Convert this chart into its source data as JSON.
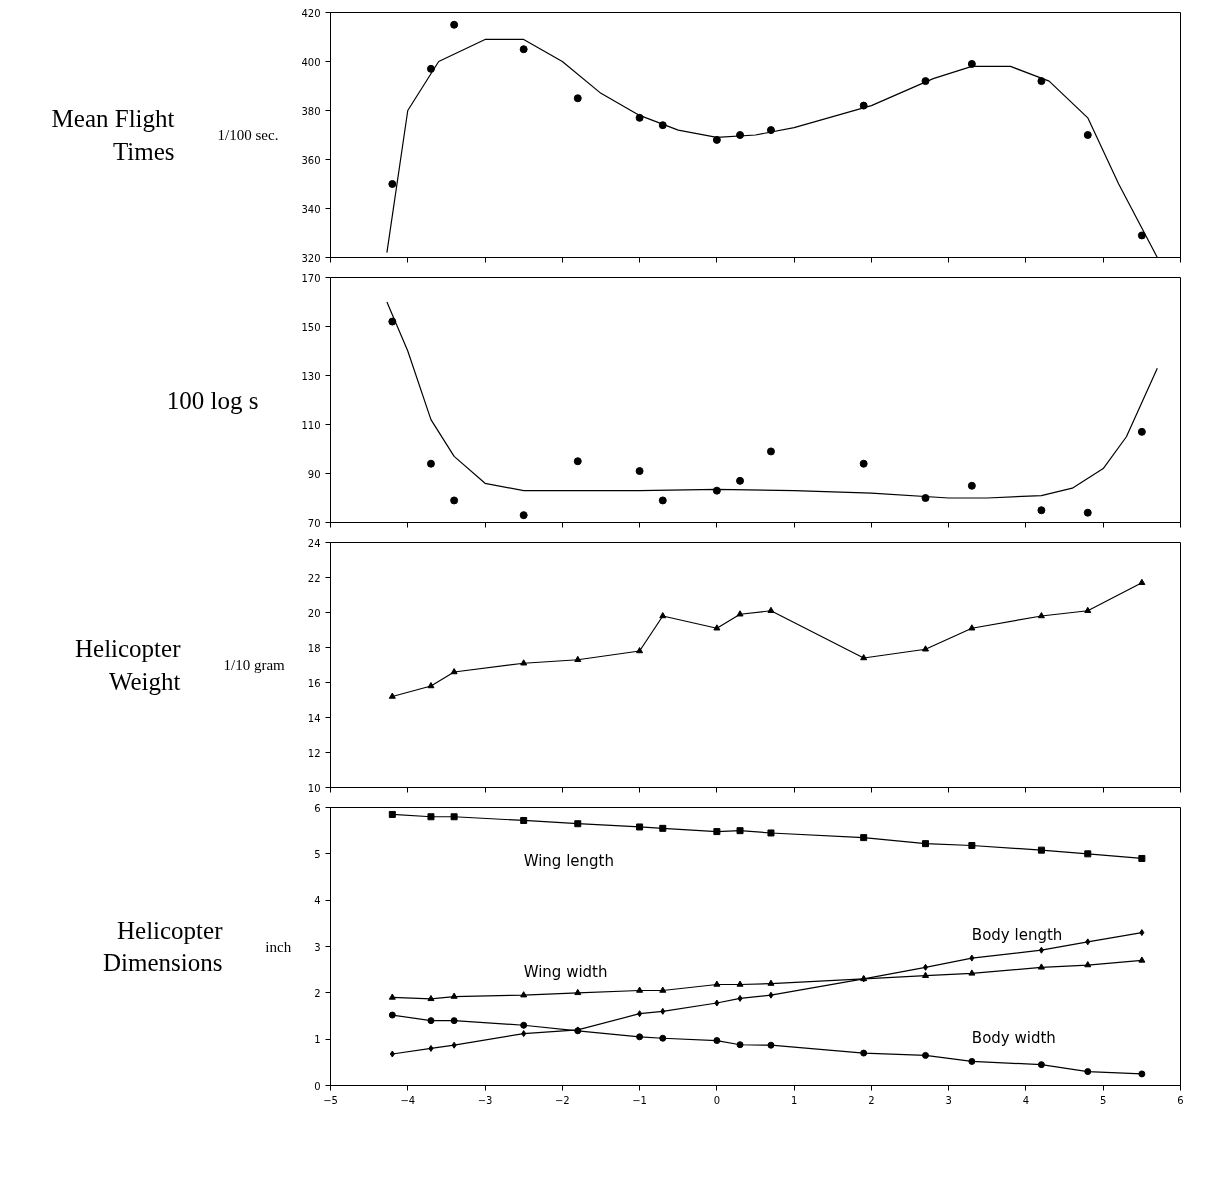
{
  "chart_data": [
    {
      "type": "scatter",
      "title": "Mean Flight Times",
      "ylabel": "1/100 sec.",
      "xlim": [
        -5,
        6
      ],
      "ylim": [
        320,
        420
      ],
      "xticks": [
        -5,
        -4,
        -3,
        -2,
        -1,
        0,
        1,
        2,
        3,
        4,
        5,
        6
      ],
      "yticks": [
        320,
        340,
        360,
        380,
        400,
        420
      ],
      "tick_labels": "y",
      "series": [
        {
          "marker": "circle",
          "color": "#000000",
          "x": [
            -4.2,
            -3.7,
            -3.4,
            -2.5,
            -1.8,
            -1.0,
            -0.7,
            0,
            0.3,
            0.7,
            1.9,
            2.7,
            3.3,
            4.2,
            4.8,
            5.5
          ],
          "values": [
            350,
            397,
            415,
            405,
            385,
            377,
            374,
            368,
            370,
            372,
            382,
            392,
            399,
            392,
            370,
            329
          ]
        },
        {
          "type": "line",
          "marker": "none",
          "color": "#000000",
          "x": [
            -4.27,
            -4.0,
            -3.6,
            -3.0,
            -2.5,
            -2.0,
            -1.5,
            -1.0,
            -0.5,
            0,
            0.5,
            1,
            2,
            2.8,
            3.3,
            3.8,
            4.3,
            4.8,
            5.2,
            5.7
          ],
          "values": [
            322,
            380,
            400,
            409,
            409,
            400,
            387,
            378,
            372,
            369,
            370,
            373,
            382,
            393,
            398,
            398,
            392,
            377,
            350,
            320
          ]
        }
      ]
    },
    {
      "type": "scatter",
      "title": "100 log s",
      "xlim": [
        -5,
        6
      ],
      "ylim": [
        70,
        170
      ],
      "xticks": [
        -5,
        -4,
        -3,
        -2,
        -1,
        0,
        1,
        2,
        3,
        4,
        5,
        6
      ],
      "yticks": [
        70,
        90,
        110,
        130,
        150,
        170
      ],
      "tick_labels": "y",
      "series": [
        {
          "marker": "circle",
          "color": "#000000",
          "x": [
            -4.2,
            -3.7,
            -3.4,
            -2.5,
            -1.8,
            -1.0,
            -0.7,
            0,
            0.3,
            0.7,
            1.9,
            2.7,
            3.3,
            4.2,
            4.8,
            5.5
          ],
          "values": [
            152,
            94,
            79,
            73,
            95,
            91,
            79,
            83,
            87,
            99,
            94,
            80,
            85,
            75,
            74,
            107
          ]
        },
        {
          "type": "line",
          "marker": "none",
          "color": "#000000",
          "x": [
            -4.27,
            -4.0,
            -3.7,
            -3.4,
            -3.0,
            -2.5,
            -1,
            0,
            1,
            2,
            3,
            3.5,
            4.2,
            4.6,
            5.0,
            5.3,
            5.7
          ],
          "values": [
            160,
            140,
            112,
            97,
            86,
            83,
            83,
            83.5,
            83,
            82,
            80,
            80,
            81,
            84,
            92,
            105,
            133
          ]
        }
      ]
    },
    {
      "type": "line",
      "title": "Helicopter Weight",
      "ylabel": "1/10 gram",
      "xlim": [
        -5,
        6
      ],
      "ylim": [
        10,
        24
      ],
      "xticks": [
        -5,
        -4,
        -3,
        -2,
        -1,
        0,
        1,
        2,
        3,
        4,
        5,
        6
      ],
      "yticks": [
        10,
        12,
        14,
        16,
        18,
        20,
        22,
        24
      ],
      "tick_labels": "y",
      "series": [
        {
          "marker": "triangle",
          "color": "#000000",
          "x": [
            -4.2,
            -3.7,
            -3.4,
            -2.5,
            -1.8,
            -1.0,
            -0.7,
            0,
            0.3,
            0.7,
            1.9,
            2.7,
            3.3,
            4.2,
            4.8,
            5.5
          ],
          "values": [
            15.2,
            15.8,
            16.6,
            17.1,
            17.3,
            17.8,
            19.8,
            19.1,
            19.9,
            20.1,
            17.4,
            17.9,
            19.1,
            19.8,
            20.1,
            21.7
          ]
        }
      ]
    },
    {
      "type": "line",
      "title": "Helicopter Dimensions",
      "ylabel": "inch",
      "xlim": [
        -5,
        6
      ],
      "ylim": [
        0,
        6
      ],
      "xticks": [
        -5,
        -4,
        -3,
        -2,
        -1,
        0,
        1,
        2,
        3,
        4,
        5,
        6
      ],
      "yticks": [
        0,
        1,
        2,
        3,
        4,
        5,
        6
      ],
      "series": [
        {
          "name": "Wing length",
          "marker": "square",
          "color": "#000000",
          "x": [
            -4.2,
            -3.7,
            -3.4,
            -2.5,
            -1.8,
            -1.0,
            -0.7,
            0,
            0.3,
            0.7,
            1.9,
            2.7,
            3.3,
            4.2,
            4.8,
            5.5
          ],
          "values": [
            5.85,
            5.8,
            5.8,
            5.72,
            5.65,
            5.58,
            5.55,
            5.48,
            5.5,
            5.45,
            5.35,
            5.22,
            5.18,
            5.08,
            5.0,
            4.9
          ]
        },
        {
          "name": "Wing width",
          "marker": "triangle",
          "color": "#000000",
          "x": [
            -4.2,
            -3.7,
            -3.4,
            -2.5,
            -1.8,
            -1.0,
            -0.7,
            0,
            0.3,
            0.7,
            1.9,
            2.7,
            3.3,
            4.2,
            4.8,
            5.5
          ],
          "values": [
            1.9,
            1.87,
            1.92,
            1.95,
            2.0,
            2.05,
            2.05,
            2.18,
            2.18,
            2.2,
            2.3,
            2.37,
            2.42,
            2.55,
            2.6,
            2.7
          ]
        },
        {
          "name": "Body length",
          "marker": "diamond",
          "color": "#000000",
          "x": [
            -4.2,
            -3.7,
            -3.4,
            -2.5,
            -1.8,
            -1.0,
            -0.7,
            0,
            0.3,
            0.7,
            1.9,
            2.7,
            3.3,
            4.2,
            4.8,
            5.5
          ],
          "values": [
            0.68,
            0.8,
            0.87,
            1.12,
            1.2,
            1.55,
            1.6,
            1.78,
            1.88,
            1.95,
            2.3,
            2.55,
            2.75,
            2.92,
            3.1,
            3.3
          ]
        },
        {
          "name": "Body width",
          "marker": "circle",
          "color": "#000000",
          "x": [
            -4.2,
            -3.7,
            -3.4,
            -2.5,
            -1.8,
            -1.0,
            -0.7,
            0,
            0.3,
            0.7,
            1.9,
            2.7,
            3.3,
            4.2,
            4.8,
            5.5
          ],
          "values": [
            1.52,
            1.4,
            1.4,
            1.3,
            1.18,
            1.05,
            1.02,
            0.97,
            0.88,
            0.87,
            0.7,
            0.65,
            0.52,
            0.45,
            0.3,
            0.25
          ]
        }
      ]
    }
  ]
}
